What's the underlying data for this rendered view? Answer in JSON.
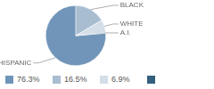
{
  "chart_data": {
    "type": "pie",
    "categories": [
      "HISPANIC",
      "BLACK",
      "WHITE",
      "A.I."
    ],
    "values": [
      76.3,
      16.5,
      6.9,
      0.3
    ],
    "value_labels": [
      "76.3%",
      "16.5%",
      "6.9%",
      null
    ],
    "colors": [
      "#7095b8",
      "#a9bdd1",
      "#d4dee8",
      "#33607f"
    ],
    "legend": "bottom"
  }
}
